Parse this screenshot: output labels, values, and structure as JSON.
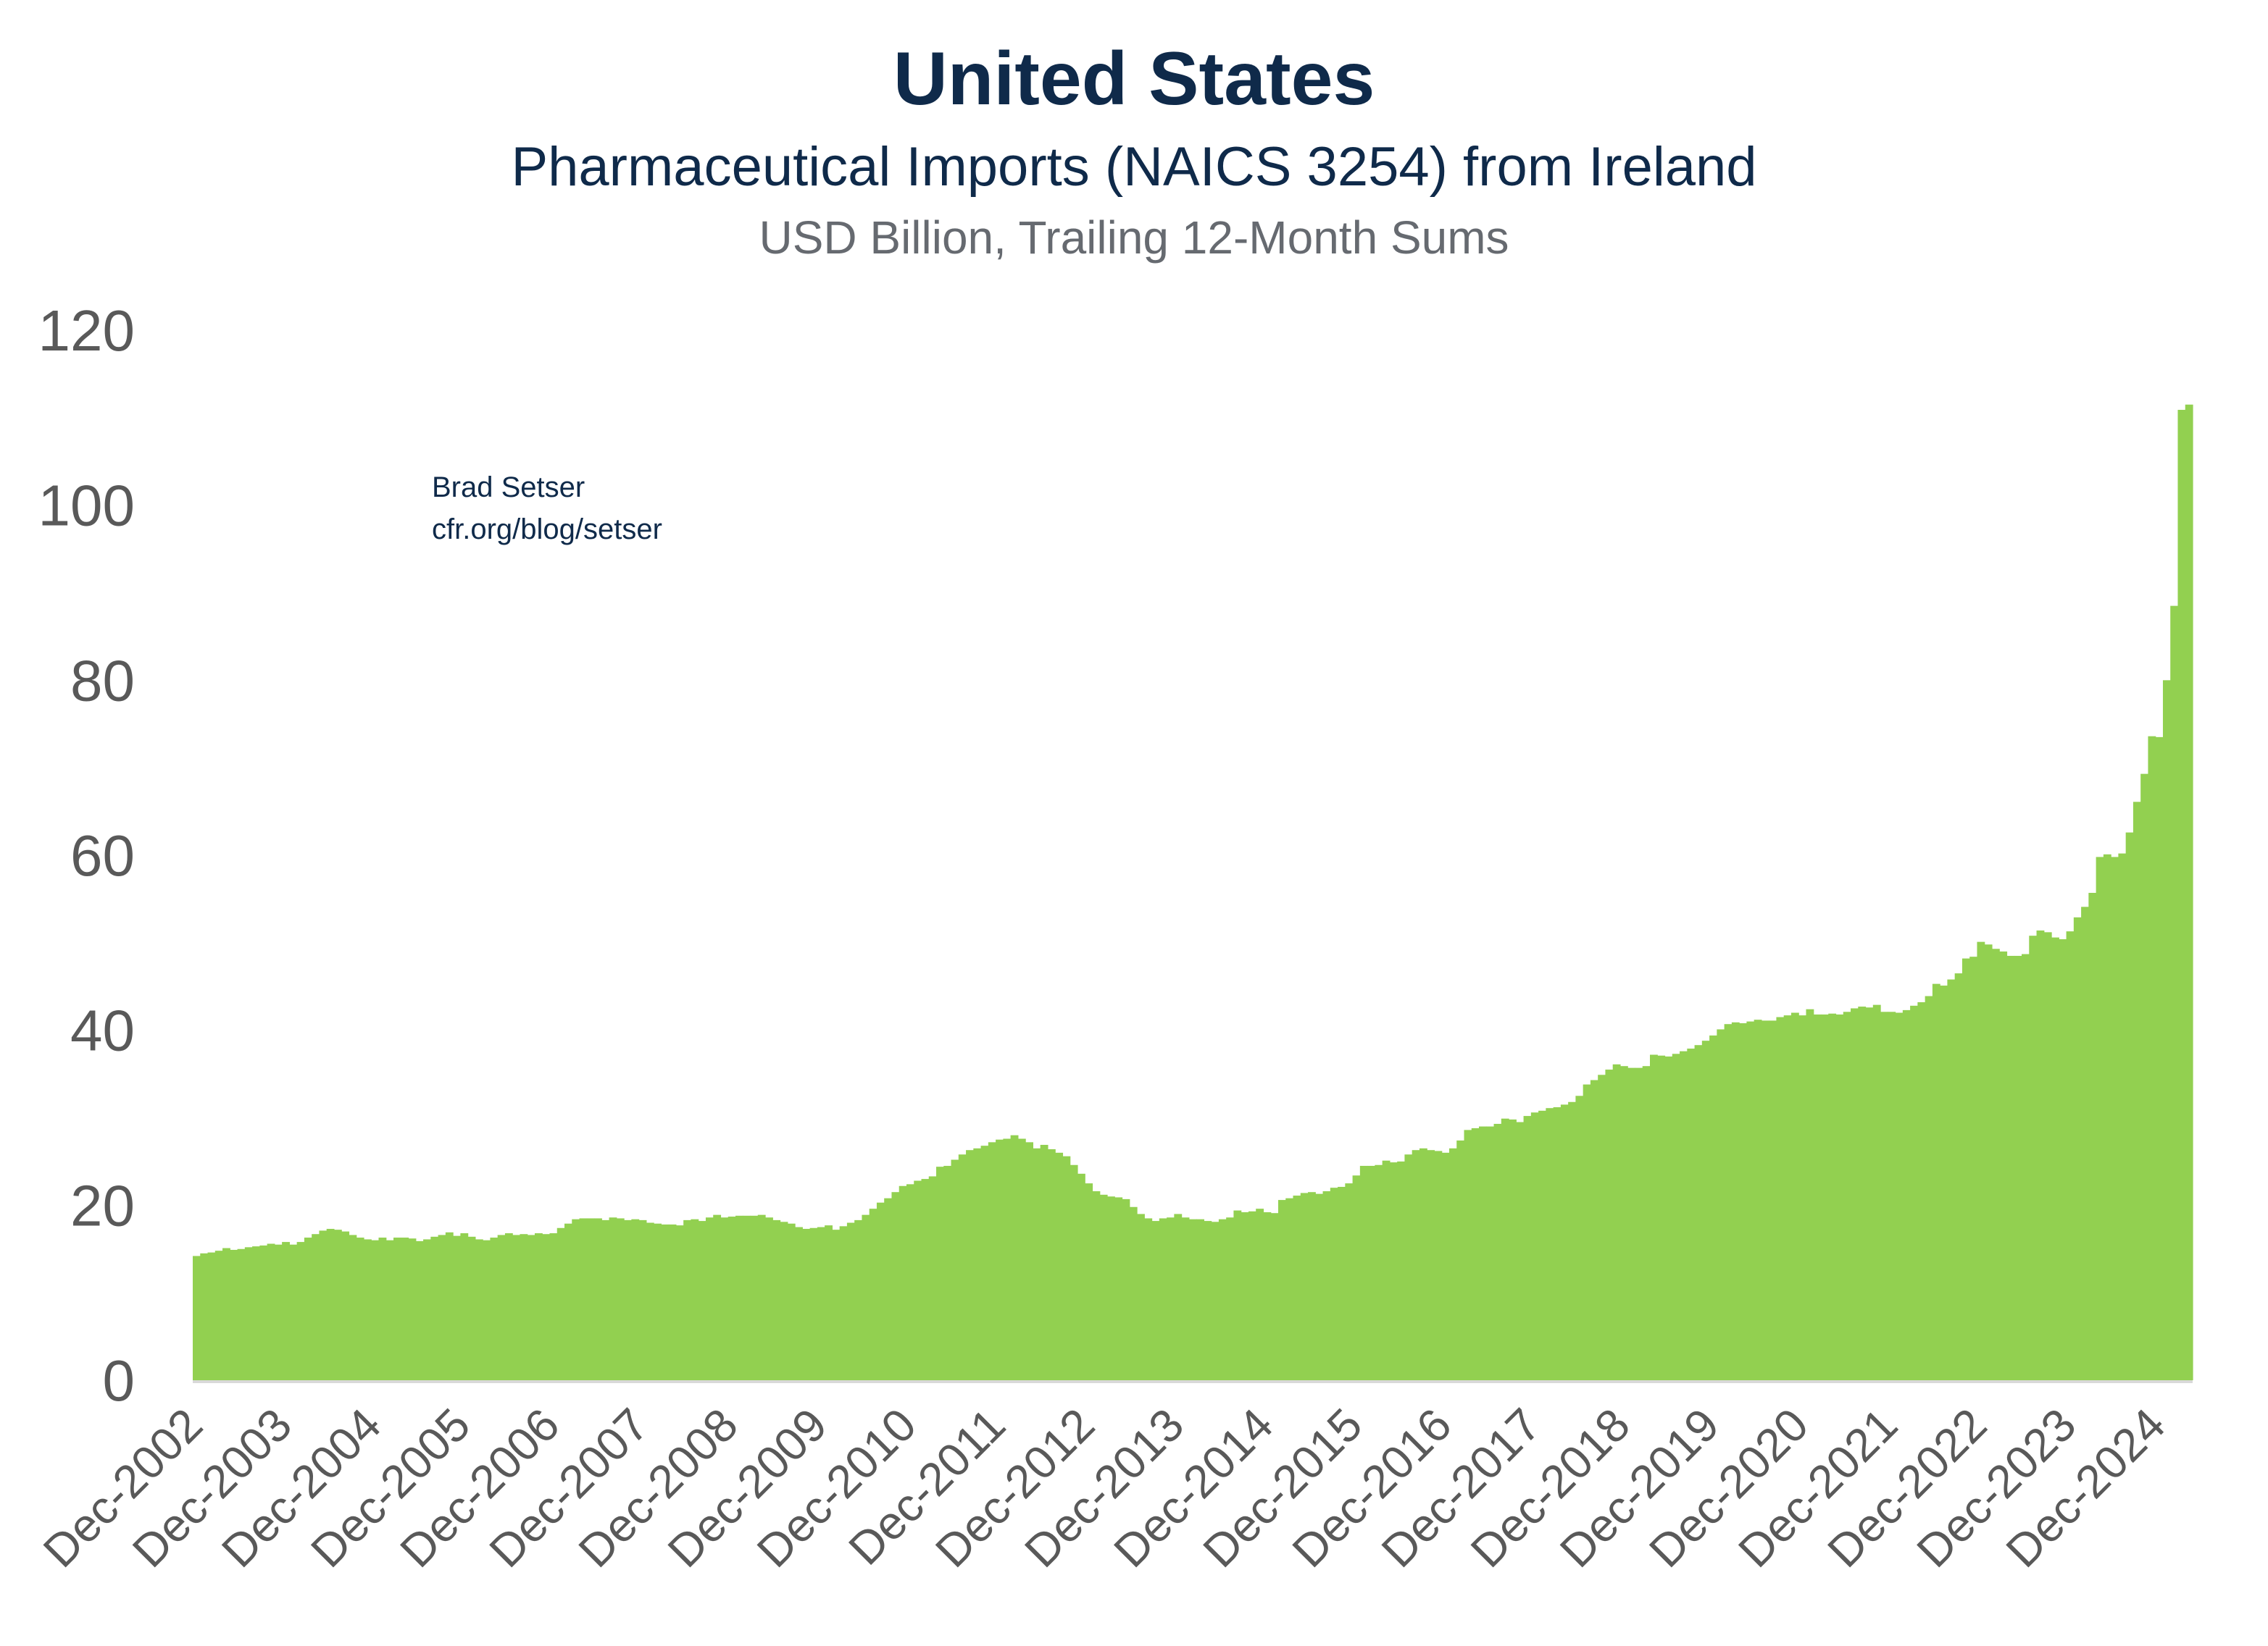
{
  "chart_data": {
    "type": "bar",
    "title": "United States",
    "subtitle": "Pharmaceutical Imports (NAICS 3254) from Ireland",
    "units": "USD Billion, Trailing 12-Month Sums",
    "annotation": [
      "Brad Setser",
      "cfr.org/blog/setser"
    ],
    "xlabel": "",
    "ylabel": "",
    "ylim": [
      0,
      120
    ],
    "yticks": [
      0,
      20,
      40,
      60,
      80,
      100,
      120
    ],
    "grid": false,
    "legend": "none",
    "color": "#92d050",
    "x_start": "Dec-2002",
    "x_frequency": "monthly",
    "xtick_labels": [
      "Dec-2002",
      "Dec-2003",
      "Dec-2004",
      "Dec-2005",
      "Dec-2006",
      "Dec-2007",
      "Dec-2008",
      "Dec-2009",
      "Dec-2010",
      "Dec-2011",
      "Dec-2012",
      "Dec-2013",
      "Dec-2014",
      "Dec-2015",
      "Dec-2016",
      "Dec-2017",
      "Dec-2018",
      "Dec-2019",
      "Dec-2020",
      "Dec-2021",
      "Dec-2022",
      "Dec-2023",
      "Dec-2024"
    ],
    "values": [
      14.2,
      14.5,
      14.6,
      14.8,
      15.1,
      14.9,
      15.0,
      15.2,
      15.3,
      15.4,
      15.6,
      15.5,
      15.8,
      15.5,
      15.8,
      16.3,
      16.7,
      17.1,
      17.3,
      17.2,
      17.0,
      16.6,
      16.3,
      16.1,
      16.0,
      16.3,
      16.0,
      16.3,
      16.3,
      16.2,
      15.9,
      16.1,
      16.4,
      16.6,
      16.9,
      16.5,
      16.8,
      16.4,
      16.1,
      16.0,
      16.3,
      16.6,
      16.8,
      16.6,
      16.7,
      16.6,
      16.8,
      16.7,
      16.8,
      17.4,
      17.9,
      18.4,
      18.5,
      18.5,
      18.5,
      18.3,
      18.6,
      18.5,
      18.3,
      18.4,
      18.3,
      18.0,
      17.9,
      17.8,
      17.8,
      17.7,
      18.3,
      18.4,
      18.2,
      18.6,
      18.9,
      18.6,
      18.7,
      18.8,
      18.8,
      18.8,
      18.9,
      18.6,
      18.3,
      18.1,
      17.9,
      17.5,
      17.3,
      17.4,
      17.5,
      17.7,
      17.2,
      17.6,
      18.0,
      18.3,
      18.9,
      19.6,
      20.3,
      20.8,
      21.5,
      22.2,
      22.4,
      22.8,
      23.0,
      23.3,
      24.4,
      24.5,
      25.2,
      25.8,
      26.3,
      26.5,
      26.8,
      27.2,
      27.5,
      27.6,
      28.0,
      27.6,
      27.2,
      26.5,
      26.9,
      26.4,
      26.0,
      25.6,
      24.6,
      23.6,
      22.5,
      21.6,
      21.2,
      21.0,
      20.9,
      20.7,
      19.8,
      19.0,
      18.5,
      18.2,
      18.5,
      18.6,
      19.0,
      18.6,
      18.4,
      18.4,
      18.2,
      18.1,
      18.4,
      18.6,
      19.4,
      19.2,
      19.3,
      19.6,
      19.2,
      19.1,
      20.6,
      20.8,
      21.1,
      21.4,
      21.5,
      21.3,
      21.6,
      22.0,
      22.1,
      22.5,
      23.4,
      24.5,
      24.5,
      24.6,
      25.1,
      24.9,
      25.0,
      25.8,
      26.3,
      26.5,
      26.3,
      26.2,
      26.0,
      26.5,
      27.4,
      28.6,
      28.8,
      29.0,
      29.0,
      29.3,
      29.9,
      29.8,
      29.5,
      30.2,
      30.6,
      30.8,
      31.1,
      31.2,
      31.5,
      31.8,
      32.5,
      33.8,
      34.3,
      34.9,
      35.5,
      36.1,
      35.9,
      35.7,
      35.7,
      35.9,
      37.2,
      37.1,
      37.0,
      37.3,
      37.6,
      37.9,
      38.3,
      38.8,
      39.4,
      40.1,
      40.7,
      40.9,
      40.8,
      41.0,
      41.2,
      41.1,
      41.1,
      41.5,
      41.7,
      42.0,
      41.7,
      42.4,
      41.8,
      41.8,
      41.9,
      41.8,
      42.1,
      42.5,
      42.7,
      42.6,
      42.9,
      42.1,
      42.1,
      42.0,
      42.3,
      42.8,
      43.2,
      43.9,
      45.3,
      45.1,
      45.8,
      46.5,
      48.2,
      48.4,
      50.1,
      49.8,
      49.3,
      49.0,
      48.5,
      48.5,
      48.7,
      50.8,
      51.4,
      51.2,
      50.6,
      50.4,
      51.3,
      52.9,
      54.1,
      55.7,
      59.8,
      60.1,
      59.8,
      60.2,
      62.6,
      66.1,
      69.3,
      73.6,
      73.5,
      80.0,
      88.5,
      110.9,
      111.5
    ]
  }
}
